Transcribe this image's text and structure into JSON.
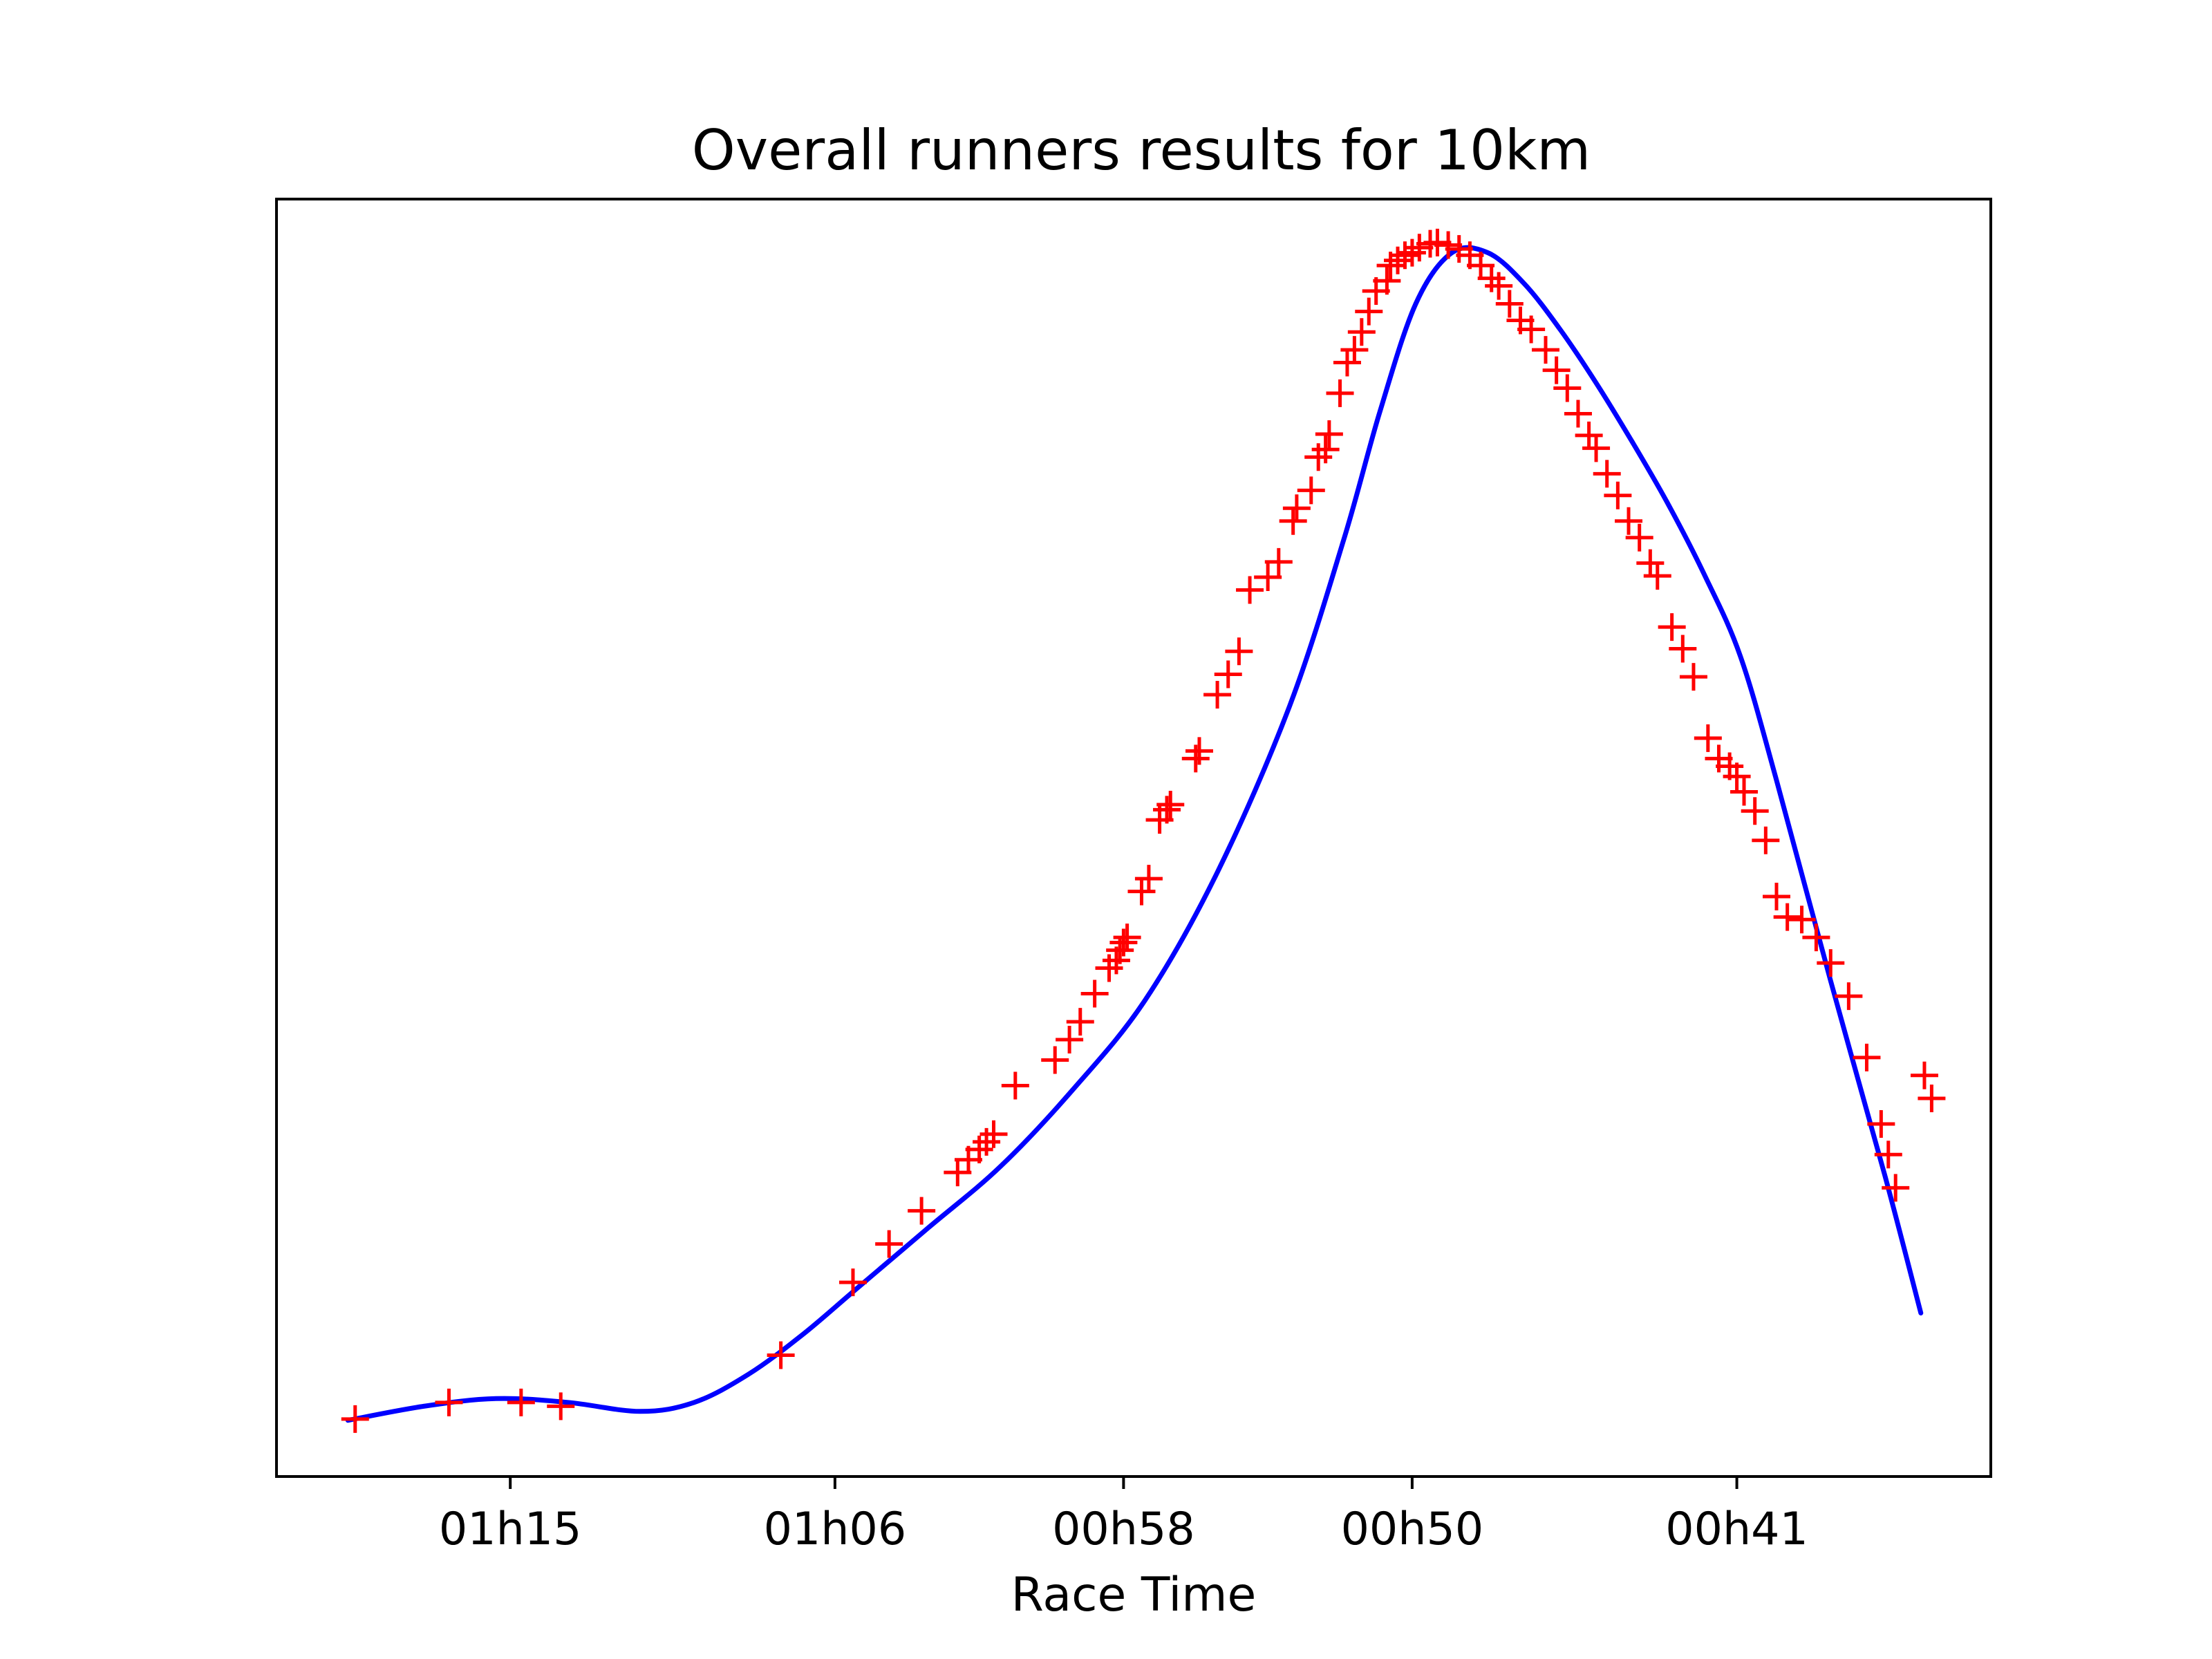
{
  "chart_data": {
    "type": "scatter",
    "title": "Overall runners results for 10km",
    "xlabel": "Race Time",
    "ylabel": "",
    "x_unit": "minutes of race time (axis reversed: slower on left, faster on right)",
    "xlim": [
      82.08,
      34.56
    ],
    "ylim": [
      0,
      1
    ],
    "x_ticks": [
      {
        "value": 75.6,
        "label": "01h15"
      },
      {
        "value": 66.6,
        "label": "01h06"
      },
      {
        "value": 58.6,
        "label": "00h58"
      },
      {
        "value": 50.6,
        "label": "00h50"
      },
      {
        "value": 41.6,
        "label": "00h41"
      }
    ],
    "y_ticks_visible": false,
    "grid": false,
    "legend": "none",
    "colors": {
      "points": "#ff0000",
      "fit_line": "#0000ff"
    },
    "series": [
      {
        "kind": "points",
        "marker": "plus",
        "x": [
          79.9,
          77.3,
          75.3,
          74.2,
          68.1,
          66.1,
          65.1,
          64.2,
          63.2,
          62.9,
          62.6,
          62.4,
          62.2,
          61.6,
          60.5,
          60.1,
          59.8,
          59.4,
          59.0,
          58.8,
          58.7,
          58.6,
          58.5,
          58.1,
          57.9,
          57.6,
          57.4,
          57.3,
          56.6,
          56.5,
          56.0,
          55.7,
          55.4,
          55.1,
          54.6,
          54.3,
          53.9,
          53.8,
          53.4,
          53.2,
          53.0,
          52.9,
          52.6,
          52.4,
          52.2,
          52.0,
          51.8,
          51.6,
          51.3,
          51.2,
          51.0,
          50.8,
          50.6,
          50.4,
          50.1,
          49.9,
          49.6,
          49.3,
          49.0,
          48.7,
          48.4,
          48.2,
          47.9,
          47.6,
          47.3,
          46.9,
          46.6,
          46.3,
          46.0,
          45.7,
          45.5,
          45.2,
          44.9,
          44.6,
          44.3,
          44.0,
          43.8,
          43.4,
          43.1,
          42.8,
          42.4,
          42.1,
          41.8,
          41.6,
          41.4,
          41.1,
          40.8,
          40.5,
          40.2,
          39.8,
          39.4,
          39.0,
          38.5,
          38.0,
          37.6,
          37.4,
          37.2,
          36.4,
          36.2
        ],
        "y": [
          0.045,
          0.058,
          0.058,
          0.055,
          0.095,
          0.152,
          0.182,
          0.208,
          0.238,
          0.248,
          0.256,
          0.262,
          0.268,
          0.306,
          0.326,
          0.342,
          0.356,
          0.378,
          0.398,
          0.404,
          0.412,
          0.418,
          0.422,
          0.458,
          0.468,
          0.514,
          0.522,
          0.526,
          0.562,
          0.568,
          0.612,
          0.628,
          0.646,
          0.694,
          0.704,
          0.716,
          0.748,
          0.758,
          0.772,
          0.798,
          0.804,
          0.816,
          0.848,
          0.872,
          0.882,
          0.896,
          0.912,
          0.928,
          0.936,
          0.948,
          0.952,
          0.956,
          0.958,
          0.962,
          0.965,
          0.966,
          0.964,
          0.961,
          0.956,
          0.948,
          0.938,
          0.932,
          0.918,
          0.905,
          0.898,
          0.882,
          0.866,
          0.852,
          0.832,
          0.815,
          0.805,
          0.785,
          0.768,
          0.748,
          0.735,
          0.715,
          0.705,
          0.665,
          0.648,
          0.626,
          0.578,
          0.562,
          0.556,
          0.548,
          0.536,
          0.521,
          0.498,
          0.454,
          0.438,
          0.436,
          0.422,
          0.402,
          0.376,
          0.328,
          0.276,
          0.252,
          0.226,
          0.314,
          0.296
        ]
      },
      {
        "kind": "line",
        "x": [
          80.1,
          78.0,
          76.0,
          74.0,
          72.0,
          70.5,
          69.0,
          67.5,
          66.0,
          64.0,
          62.0,
          60.0,
          58.0,
          56.0,
          54.0,
          52.5,
          51.5,
          50.5,
          49.5,
          48.5,
          47.5,
          46.5,
          45.5,
          44.5,
          43.5,
          42.5,
          41.5,
          40.5,
          39.0,
          37.5,
          36.5
        ],
        "y": [
          0.044,
          0.055,
          0.061,
          0.058,
          0.051,
          0.058,
          0.08,
          0.111,
          0.147,
          0.195,
          0.243,
          0.303,
          0.373,
          0.473,
          0.603,
          0.733,
          0.833,
          0.918,
          0.958,
          0.958,
          0.934,
          0.898,
          0.856,
          0.81,
          0.761,
          0.706,
          0.642,
          0.545,
          0.388,
          0.236,
          0.128
        ]
      }
    ]
  }
}
